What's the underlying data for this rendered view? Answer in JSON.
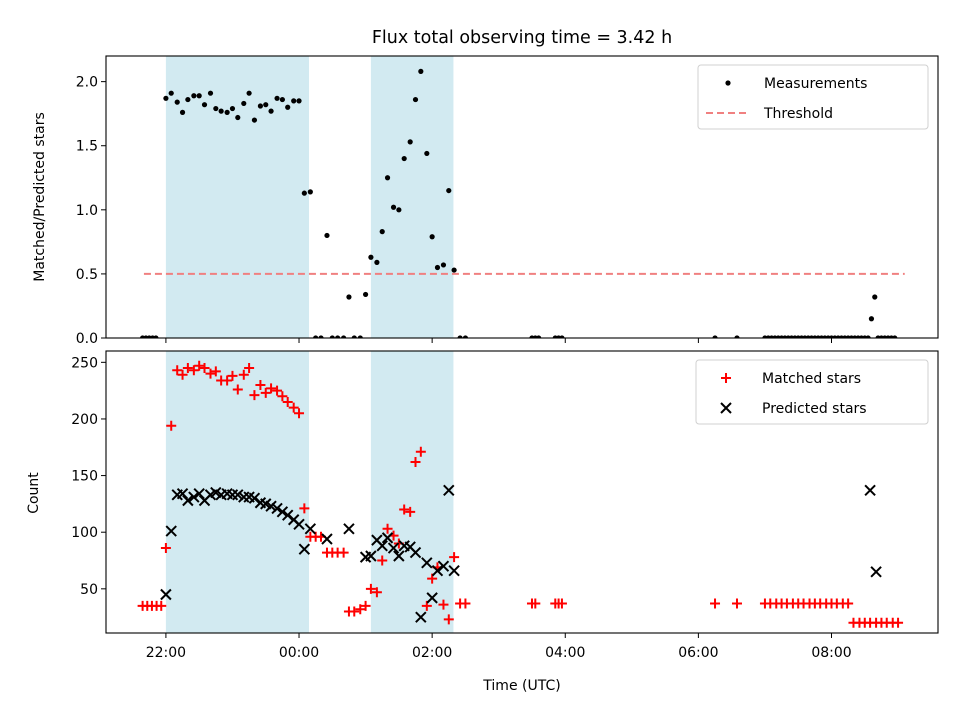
{
  "chart_data": [
    {
      "type": "scatter",
      "title": "Flux total observing time = 3.42 h",
      "xlabel": "",
      "ylabel": "Matched/Predicted stars",
      "ylim": [
        0,
        2.2
      ],
      "yticks": [
        "0.0",
        "0.5",
        "1.0",
        "1.5",
        "2.0"
      ],
      "yticks_values": [
        0,
        0.5,
        1.0,
        1.5,
        2.0
      ],
      "xlim": [
        -0.9,
        11.6
      ],
      "xticks_values": [
        0,
        2,
        4,
        6,
        8,
        10
      ],
      "legend_position": "top-right",
      "colors": {
        "measurements": "#000000",
        "threshold": "#f08080",
        "span": "#add8e6"
      },
      "shaded_intervals": [
        [
          0,
          2.15
        ],
        [
          3.08,
          4.32
        ]
      ],
      "threshold": {
        "value": 0.5,
        "x_range": [
          -0.33,
          11.1
        ]
      },
      "series": [
        {
          "name": "Measurements",
          "marker": "dot",
          "x": [
            -0.35,
            -0.3,
            -0.25,
            -0.2,
            -0.15,
            0.0,
            0.08,
            0.17,
            0.25,
            0.33,
            0.42,
            0.5,
            0.58,
            0.67,
            0.75,
            0.83,
            0.92,
            1.0,
            1.08,
            1.17,
            1.25,
            1.33,
            1.42,
            1.5,
            1.58,
            1.67,
            1.75,
            1.83,
            1.92,
            2.0,
            2.08,
            2.17,
            2.25,
            2.33,
            2.42,
            2.5,
            2.58,
            2.67,
            2.75,
            2.83,
            2.92,
            3.0,
            3.08,
            3.17,
            3.25,
            3.33,
            3.42,
            3.5,
            3.58,
            3.67,
            3.75,
            3.83,
            3.92,
            4.0,
            4.08,
            4.17,
            4.25,
            4.33,
            4.42,
            4.5,
            5.5,
            5.55,
            5.6,
            5.85,
            5.9,
            5.95,
            8.25,
            8.58,
            9.0,
            9.05,
            9.1,
            9.15,
            9.2,
            9.25,
            9.3,
            9.35,
            9.4,
            9.45,
            9.5,
            9.55,
            9.6,
            9.65,
            9.7,
            9.75,
            9.8,
            9.85,
            9.9,
            9.95,
            10.0,
            10.05,
            10.1,
            10.15,
            10.2,
            10.25,
            10.3,
            10.35,
            10.4,
            10.45,
            10.5,
            10.55,
            10.6,
            10.65,
            10.7,
            10.75,
            10.8,
            10.85,
            10.9,
            10.95
          ],
          "y": [
            0,
            0,
            0,
            0,
            0,
            1.87,
            1.91,
            1.84,
            1.76,
            1.86,
            1.89,
            1.89,
            1.82,
            1.91,
            1.79,
            1.77,
            1.76,
            1.79,
            1.72,
            1.83,
            1.91,
            1.7,
            1.81,
            1.82,
            1.77,
            1.87,
            1.86,
            1.8,
            1.85,
            1.85,
            1.13,
            1.14,
            0,
            0,
            0.8,
            0,
            0,
            0,
            0.32,
            0,
            0,
            0.34,
            0.63,
            0.59,
            0.83,
            1.25,
            1.02,
            1.0,
            1.4,
            1.53,
            1.86,
            2.08,
            1.44,
            0.79,
            0.55,
            0.57,
            1.15,
            0.53,
            0,
            0,
            0,
            0,
            0,
            0,
            0,
            0,
            0,
            0,
            0,
            0,
            0,
            0,
            0,
            0,
            0,
            0,
            0,
            0,
            0,
            0,
            0,
            0,
            0,
            0,
            0,
            0,
            0,
            0,
            0,
            0,
            0,
            0,
            0,
            0,
            0,
            0,
            0,
            0,
            0,
            0,
            0.15,
            0.32,
            0,
            0,
            0,
            0,
            0,
            0
          ]
        },
        {
          "name": "Threshold",
          "marker": "dashed-line"
        }
      ]
    },
    {
      "type": "scatter",
      "title": "",
      "xlabel": "Time (UTC)",
      "ylabel": "Count",
      "ylim": [
        11,
        260
      ],
      "yticks": [
        "50",
        "100",
        "150",
        "200",
        "250"
      ],
      "yticks_values": [
        50,
        100,
        150,
        200,
        250
      ],
      "xlim": [
        -0.9,
        11.6
      ],
      "xticks": [
        "22:00",
        "00:00",
        "02:00",
        "04:00",
        "06:00",
        "08:00"
      ],
      "xticks_values": [
        0,
        2,
        4,
        6,
        8,
        10
      ],
      "legend_position": "top-right",
      "colors": {
        "matched": "#ff0000",
        "predicted": "#000000",
        "span": "#add8e6"
      },
      "shaded_intervals": [
        [
          0,
          2.15
        ],
        [
          3.08,
          4.32
        ]
      ],
      "series": [
        {
          "name": "Matched stars",
          "marker": "plus",
          "x": [
            -0.35,
            -0.28,
            -0.21,
            -0.14,
            -0.07,
            0.0,
            0.08,
            0.17,
            0.25,
            0.33,
            0.42,
            0.5,
            0.58,
            0.67,
            0.75,
            0.83,
            0.92,
            1.0,
            1.08,
            1.17,
            1.25,
            1.33,
            1.42,
            1.5,
            1.58,
            1.67,
            1.75,
            1.83,
            1.92,
            2.0,
            2.08,
            2.17,
            2.25,
            2.33,
            2.42,
            2.5,
            2.58,
            2.67,
            2.75,
            2.83,
            2.92,
            3.0,
            3.08,
            3.17,
            3.25,
            3.33,
            3.42,
            3.5,
            3.58,
            3.67,
            3.75,
            3.83,
            3.92,
            4.0,
            4.08,
            4.17,
            4.25,
            4.33,
            4.42,
            4.5,
            5.5,
            5.55,
            5.85,
            5.9,
            5.95,
            8.25,
            8.58,
            9.0,
            9.08,
            9.17,
            9.25,
            9.33,
            9.42,
            9.5,
            9.58,
            9.67,
            9.75,
            9.83,
            9.92,
            10.0,
            10.08,
            10.17,
            10.25,
            10.33,
            10.42,
            10.5,
            10.58,
            10.67,
            10.75,
            10.83,
            10.92,
            11.0
          ],
          "y": [
            35,
            35,
            35,
            35,
            35,
            86,
            194,
            243,
            239,
            245,
            243,
            247,
            245,
            240,
            242,
            234,
            234,
            238,
            226,
            239,
            245,
            221,
            230,
            223,
            227,
            225,
            220,
            215,
            210,
            205,
            121,
            96,
            96,
            96,
            82,
            82,
            82,
            82,
            30,
            30,
            32,
            35,
            50,
            47,
            75,
            103,
            97,
            90,
            120,
            118,
            162,
            171,
            35,
            59,
            69,
            36,
            23,
            78,
            37,
            37,
            37,
            37,
            37,
            37,
            37,
            37,
            37,
            37,
            37,
            37,
            37,
            37,
            37,
            37,
            37,
            37,
            37,
            37,
            37,
            37,
            37,
            37,
            37,
            20,
            20,
            20,
            20,
            20,
            20,
            20,
            20,
            20
          ]
        },
        {
          "name": "Predicted stars",
          "marker": "x",
          "x": [
            0.0,
            0.08,
            0.17,
            0.25,
            0.33,
            0.42,
            0.5,
            0.58,
            0.67,
            0.75,
            0.83,
            0.92,
            1.0,
            1.08,
            1.17,
            1.25,
            1.33,
            1.42,
            1.5,
            1.58,
            1.67,
            1.75,
            1.83,
            1.92,
            2.0,
            2.08,
            2.17,
            2.42,
            2.75,
            3.0,
            3.08,
            3.17,
            3.25,
            3.33,
            3.42,
            3.5,
            3.58,
            3.67,
            3.75,
            3.83,
            3.92,
            4.0,
            4.08,
            4.17,
            4.25,
            4.33,
            10.58,
            10.67
          ],
          "y": [
            45,
            101,
            133,
            134,
            128,
            131,
            134,
            128,
            133,
            135,
            133,
            134,
            133,
            133,
            131,
            131,
            130,
            126,
            125,
            123,
            121,
            118,
            115,
            111,
            107,
            85,
            103,
            94,
            103,
            78,
            79,
            93,
            88,
            95,
            86,
            79,
            88,
            87,
            82,
            25,
            73,
            42,
            66,
            70,
            137,
            66,
            137,
            65
          ]
        }
      ]
    }
  ]
}
